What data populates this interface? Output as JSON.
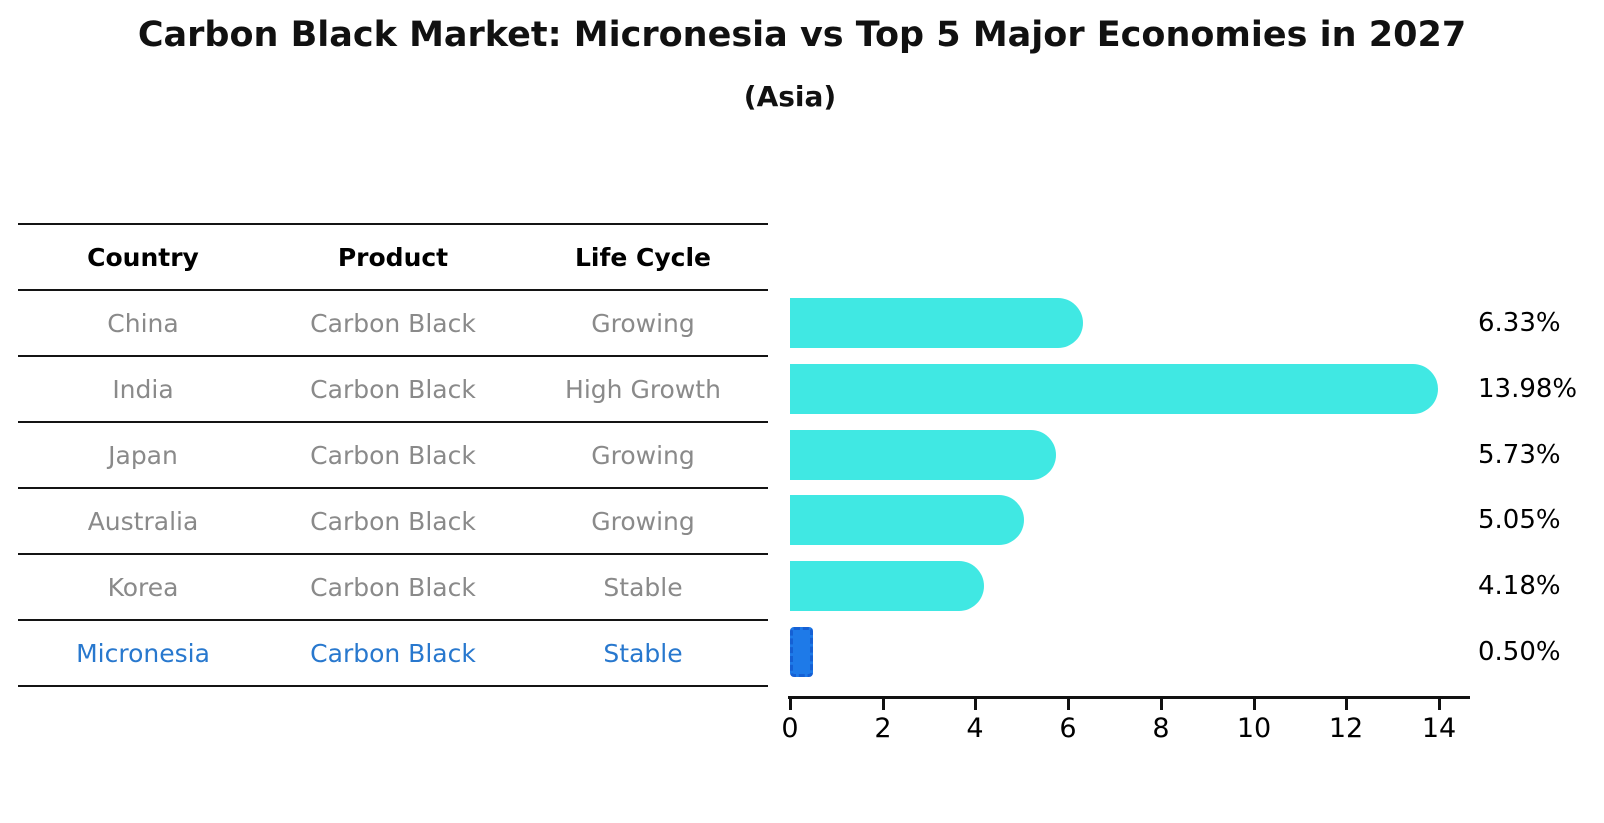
{
  "chart_data": {
    "type": "bar",
    "orientation": "horizontal",
    "title": "Carbon Black Market: Micronesia vs Top 5 Major Economies in 2027",
    "subtitle": "(Asia)",
    "categories": [
      "China",
      "India",
      "Japan",
      "Australia",
      "Korea",
      "Micronesia"
    ],
    "values": [
      6.33,
      13.98,
      5.73,
      5.05,
      4.18,
      0.5
    ],
    "value_labels": [
      "6.33%",
      "13.98%",
      "5.73%",
      "5.05%",
      "4.18%",
      "0.50%"
    ],
    "unit": "%",
    "xticks": [
      0,
      2,
      4,
      6,
      8,
      10,
      12,
      14
    ],
    "xtick_labels": [
      "0",
      "2",
      "4",
      "6",
      "8",
      "10",
      "12",
      "14"
    ],
    "xlim": [
      0,
      14.65
    ],
    "grid": false,
    "legend": false,
    "highlight_index": 5,
    "highlight_category": "Micronesia"
  },
  "table": {
    "headers": [
      "Country",
      "Product",
      "Life Cycle"
    ],
    "rows": [
      {
        "country": "China",
        "product": "Carbon Black",
        "life_cycle": "Growing",
        "highlight": false
      },
      {
        "country": "India",
        "product": "Carbon Black",
        "life_cycle": "High Growth",
        "highlight": false
      },
      {
        "country": "Japan",
        "product": "Carbon Black",
        "life_cycle": "Growing",
        "highlight": false
      },
      {
        "country": "Australia",
        "product": "Carbon Black",
        "life_cycle": "Growing",
        "highlight": false
      },
      {
        "country": "Korea",
        "product": "Carbon Black",
        "life_cycle": "Stable",
        "highlight": false
      },
      {
        "country": "Micronesia",
        "product": "Carbon Black",
        "life_cycle": "Stable",
        "highlight": true
      }
    ]
  },
  "colors": {
    "bar_color": "#40E8E3",
    "highlight_bar_fill": "#1E7AE8",
    "highlight_bar_border": "#1560D4",
    "highlight_text": "#2878CE",
    "row_text": "#8A8A8A",
    "axis_color": "#111111",
    "title_color": "#111111",
    "background": "#FFFFFF"
  }
}
